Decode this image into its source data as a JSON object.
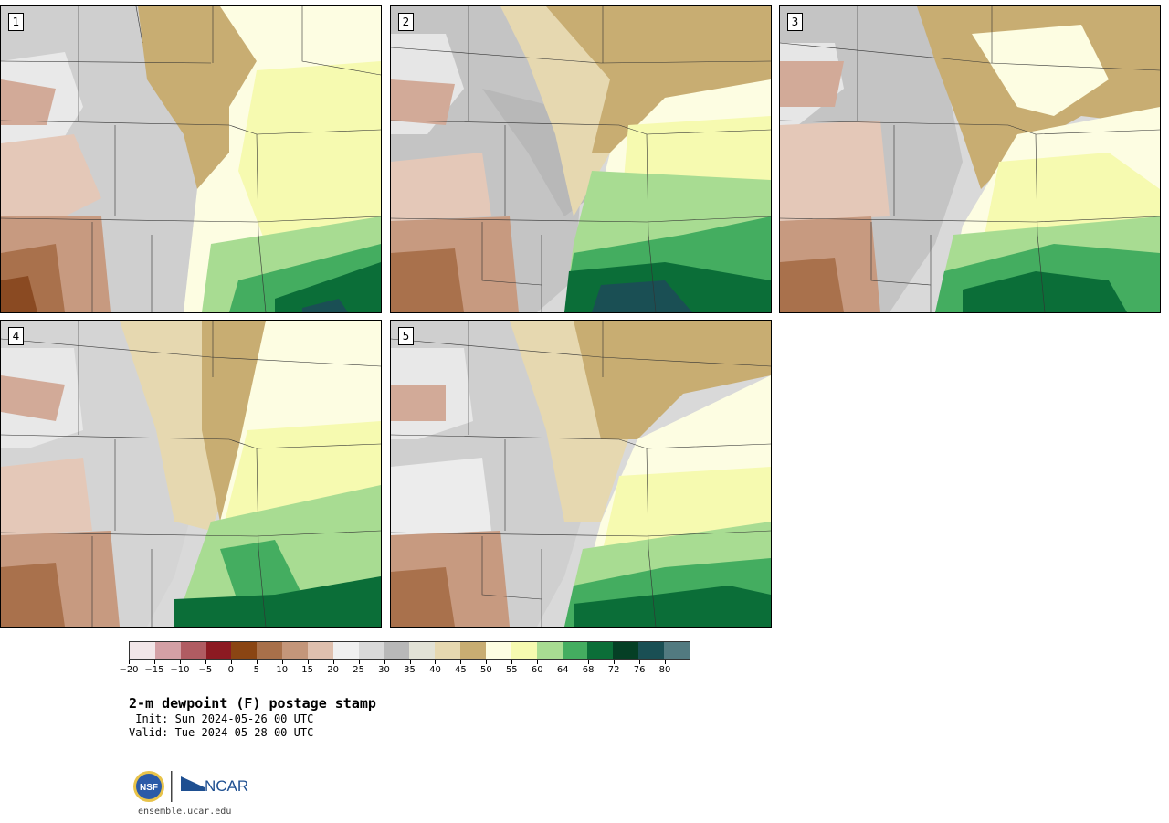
{
  "panels": [
    {
      "label": "1"
    },
    {
      "label": "2"
    },
    {
      "label": "3"
    },
    {
      "label": "4"
    },
    {
      "label": "5"
    }
  ],
  "colorbar": {
    "colors": [
      "#f2e6e8",
      "#d4a0a5",
      "#b05c62",
      "#8c1a22",
      "#8a4513",
      "#a8704a",
      "#c4967a",
      "#dfc0ae",
      "#f0f0f0",
      "#d9d9d9",
      "#b8b8b8",
      "#e2e2d6",
      "#e6d8b0",
      "#c8ad72",
      "#fdfde2",
      "#f6fab0",
      "#a8dc92",
      "#44ad60",
      "#0b6e38",
      "#053f25",
      "#1a4f54",
      "#527a80"
    ],
    "tick_labels": [
      "−20",
      "−15",
      "−10",
      "−5",
      "0",
      "5",
      "10",
      "15",
      "20",
      "25",
      "30",
      "35",
      "40",
      "45",
      "50",
      "55",
      "60",
      "64",
      "68",
      "72",
      "76",
      "80"
    ]
  },
  "title": "2-m dewpoint (F) postage stamp",
  "init": " Init: Sun 2024-05-26 00 UTC",
  "valid": "Valid: Tue 2024-05-28 00 UTC",
  "logo": {
    "nsf": "NSF",
    "ncar": "NCAR"
  },
  "url": "ensemble.ucar.edu"
}
